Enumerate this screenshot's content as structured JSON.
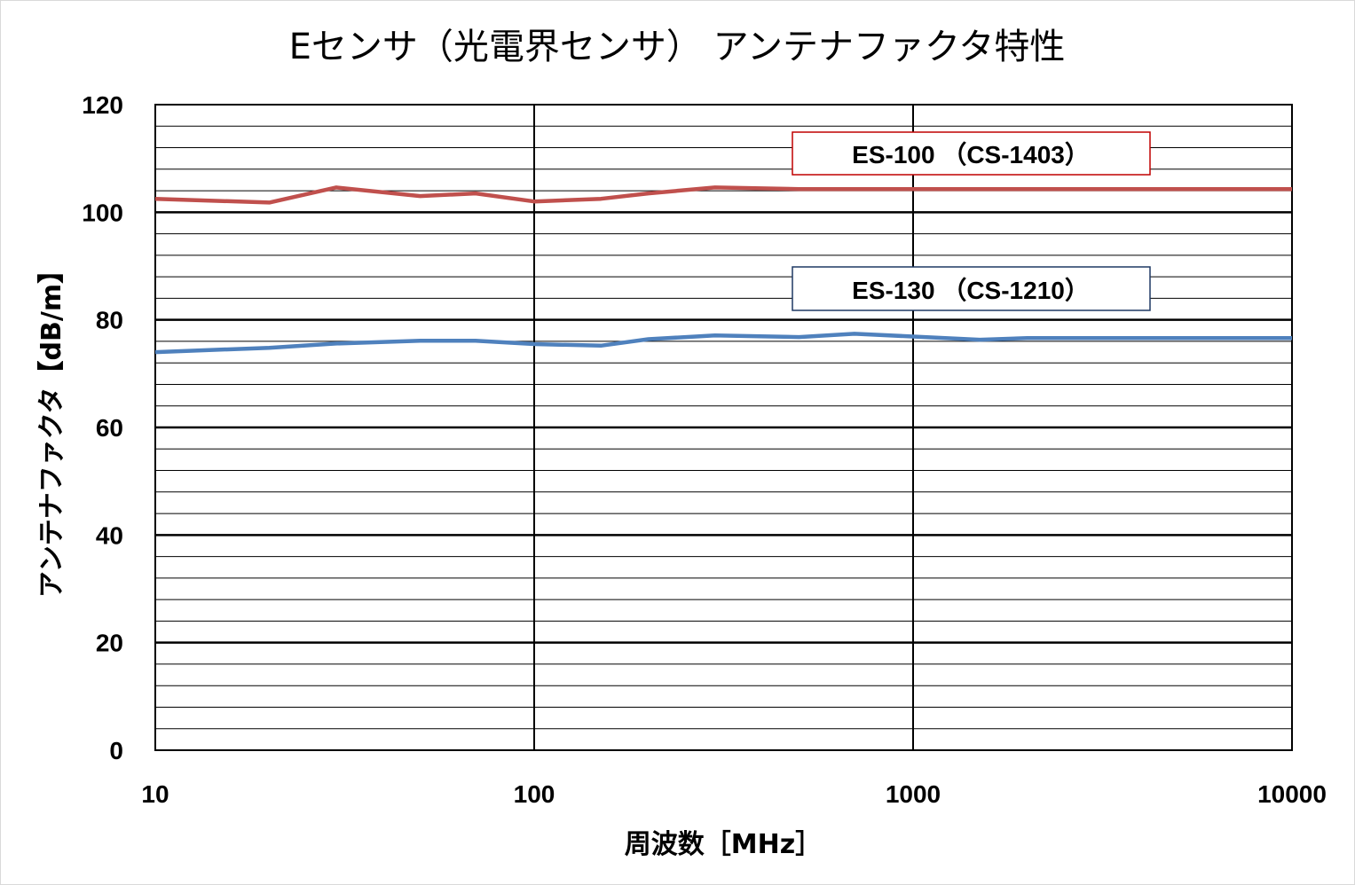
{
  "chart_data": {
    "type": "line",
    "title": "Eセンサ（光電界センサ） アンテナファクタ特性",
    "xlabel": "周波数［MHz］",
    "ylabel": "アンテナファクタ【dB/m】",
    "xscale": "log",
    "xlim": [
      10,
      10000
    ],
    "ylim": [
      0,
      120
    ],
    "x_ticks": [
      "10",
      "100",
      "1000",
      "10000"
    ],
    "y_ticks": [
      "0",
      "20",
      "40",
      "60",
      "80",
      "100",
      "120"
    ],
    "y_major_step": 20,
    "y_minor_step": 4,
    "grid": true,
    "series": [
      {
        "name": "ES-100 （CS-1403）",
        "color": "#c0504d",
        "x": [
          10,
          20,
          30,
          50,
          70,
          100,
          150,
          200,
          300,
          500,
          700,
          1000,
          1500,
          2000,
          3000,
          5000,
          7000,
          10000
        ],
        "values": [
          102.5,
          101.8,
          104.6,
          103.0,
          103.5,
          102.0,
          102.5,
          103.5,
          104.6,
          104.3,
          104.3,
          104.3,
          104.3,
          104.3,
          104.3,
          104.3,
          104.3,
          104.3
        ]
      },
      {
        "name": "ES-130 （CS-1210）",
        "color": "#4f81bd",
        "x": [
          10,
          20,
          30,
          50,
          70,
          100,
          150,
          200,
          300,
          500,
          700,
          1000,
          1500,
          2000,
          3000,
          5000,
          7000,
          10000
        ],
        "values": [
          74.0,
          74.8,
          75.6,
          76.1,
          76.1,
          75.5,
          75.2,
          76.4,
          77.1,
          76.8,
          77.4,
          76.9,
          76.3,
          76.6,
          76.6,
          76.6,
          76.6,
          76.6
        ]
      }
    ],
    "annotations": [
      {
        "text": "ES-100 （CS-1403）",
        "series": 0,
        "border_color": "#c00000"
      },
      {
        "text": "ES-130 （CS-1210）",
        "series": 1,
        "border_color": "#1f3864"
      }
    ]
  }
}
